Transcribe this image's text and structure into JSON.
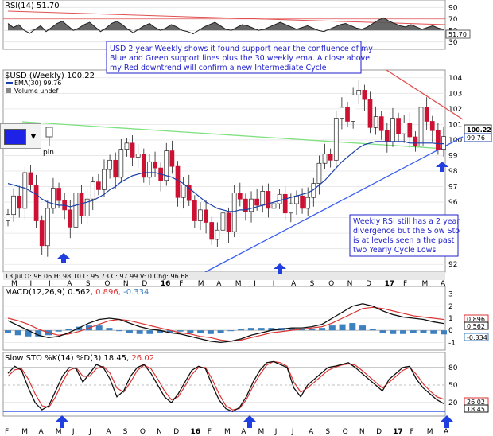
{
  "rsi_panel": {
    "title": "RSI(14) 51.70",
    "levels": [
      90,
      70,
      50,
      30
    ],
    "last_value_label": "51.70",
    "last_value": 51.7
  },
  "price_panel": {
    "title": "$USD (Weekly) 100.22",
    "legend_ema": "EMA(30) 99.76",
    "legend_volume": "Volume undef",
    "y_ticks": [
      92,
      93,
      94,
      95,
      96,
      97,
      98,
      99,
      100,
      101,
      102,
      103,
      104
    ],
    "last_price_label": "100.22",
    "last_price": 100.22,
    "ema_label": "99.76",
    "ema_value": 99.76,
    "ohlc_bar": "13 Jul  O: 96.06  H: 98.10  L: 95.73  C: 97.99  V: 0  Chg: 96.68",
    "x_labels": [
      "M",
      "J",
      "J",
      "A",
      "S",
      "O",
      "N",
      "D",
      "16",
      "F",
      "M",
      "A",
      "M",
      "J",
      "J",
      "A",
      "S",
      "O",
      "N",
      "D",
      "17",
      "F",
      "M",
      "A"
    ],
    "note1": [
      "USD 2 year Weekly shows it found support near the confluence of my",
      "Blue and Green support lines plus the 30 weekly ema. A close above",
      "my Red downtrend will confirm a new Intermediate Cycle"
    ],
    "note2": [
      "Weekly RSI still has a 2 year",
      "divergence but the Slow Sto",
      "is at levels seen a the past",
      "two Yearly Cycle Lows"
    ]
  },
  "macd_panel": {
    "title_prefix": "MACD(12,26,9) 0.562,",
    "title_signal": "0.896,",
    "title_hist": "-0.334",
    "y_ticks": [
      3,
      2,
      1,
      0,
      -1
    ],
    "labels": [
      "0.896",
      "0.562",
      "-0.334"
    ]
  },
  "sto_panel": {
    "title_prefix": "Slow STO %K(14) %D(3) 18.45,",
    "title_d": "26.02",
    "y_ticks": [
      80,
      50,
      20
    ],
    "labels": [
      "26.02",
      "18.45"
    ],
    "x_labels": [
      "F",
      "M",
      "A",
      "M",
      "J",
      "J",
      "A",
      "S",
      "O",
      "N",
      "D",
      "16",
      "F",
      "M",
      "A",
      "M",
      "J",
      "J",
      "A",
      "S",
      "O",
      "N",
      "D",
      "17",
      "F",
      "M",
      "A"
    ]
  },
  "toolbar": {
    "swatch_color": "#1e22e6",
    "dropdown_glyph": "▼",
    "pin_label": "pin"
  },
  "colors": {
    "up_candle": "#ffffff",
    "down_candle": "#cc1133",
    "ema": "#1a3fa8",
    "green_line": "#7fe07f",
    "red_line": "#e05050",
    "blue_line": "#3a5ff0",
    "macd": "#111111",
    "signal": "#dd3333",
    "histogram": "#3d80c0",
    "arrow": "#1f3fe0"
  },
  "chart_data": [
    {
      "type": "line",
      "title": "RSI(14) 51.70",
      "series": [
        {
          "name": "RSI(14)",
          "values": [
            62,
            55,
            60,
            50,
            45,
            52,
            58,
            48,
            55,
            62,
            66,
            58,
            50,
            54,
            60,
            64,
            56,
            48,
            54,
            62,
            66,
            60,
            52,
            46,
            52,
            58,
            62,
            55,
            50,
            54,
            60,
            56,
            50,
            48,
            44,
            50,
            56,
            60,
            64,
            58,
            52,
            50,
            55,
            60,
            58,
            54,
            50,
            52,
            56,
            60,
            64,
            60,
            56,
            52,
            55,
            58,
            54,
            50,
            48,
            52,
            56,
            60,
            62,
            58,
            54,
            52,
            56,
            62,
            68,
            72,
            66,
            62,
            58,
            56,
            60,
            56,
            52,
            55,
            58,
            54,
            51.7
          ]
        }
      ],
      "ylim": [
        20,
        100
      ]
    },
    {
      "type": "candlestick",
      "title": "$USD (Weekly) 100.22",
      "ylim": [
        91.5,
        104.5
      ],
      "series": [
        {
          "name": "$USD (Weekly)",
          "close": [
            95.2,
            96.4,
            95.6,
            97.9,
            97.1,
            94.8,
            93.2,
            95.6,
            96.9,
            96.1,
            95.5,
            94.4,
            96.6,
            95.1,
            96.2,
            97.3,
            96.8,
            98.1,
            98.7,
            97.6,
            99.4,
            99.8,
            98.9,
            99.1,
            97.6,
            98.6,
            98.2,
            97.4,
            99.3,
            98.3,
            96.3,
            97.1,
            96.1,
            94.8,
            95.5,
            94.7,
            93.6,
            94.2,
            95.3,
            94.1,
            96.6,
            96.2,
            95.4,
            96.2,
            95.8,
            96.7,
            95.6,
            95.9,
            96.5,
            95.3,
            95.9,
            96.4,
            95.6,
            96.3,
            97.2,
            98.5,
            99.1,
            98.7,
            101.4,
            102.1,
            101.2,
            102.9,
            103.2,
            102.6,
            100.8,
            101.5,
            100.6,
            99.9,
            101.4,
            100.4,
            101.1,
            100.2,
            99.6,
            102.1,
            101.2,
            100.6,
            99.4,
            100.22
          ],
          "ema30": [
            97.2,
            97.1,
            97.0,
            96.9,
            96.7,
            96.5,
            96.2,
            96.0,
            95.9,
            95.8,
            95.8,
            95.7,
            95.8,
            95.9,
            96.0,
            96.1,
            96.3,
            96.5,
            96.8,
            97.0,
            97.3,
            97.5,
            97.7,
            97.8,
            97.9,
            97.9,
            97.9,
            97.8,
            97.7,
            97.6,
            97.4,
            97.2,
            96.9,
            96.6,
            96.3,
            96.0,
            95.8,
            95.6,
            95.5,
            95.4,
            95.4,
            95.5,
            95.5,
            95.6,
            95.7,
            95.8,
            95.9,
            96.0,
            96.1,
            96.2,
            96.3,
            96.4,
            96.5,
            96.6,
            96.8,
            97.1,
            97.4,
            97.8,
            98.2,
            98.6,
            98.9,
            99.2,
            99.5,
            99.7,
            99.8,
            99.9,
            99.9,
            99.9,
            99.9,
            99.9,
            99.9,
            99.8,
            99.8,
            99.8,
            99.8,
            99.8,
            99.76,
            99.76
          ]
        }
      ]
    },
    {
      "type": "line",
      "title": "MACD(12,26,9) 0.562, 0.896, -0.334",
      "ylim": [
        -1.5,
        3.5
      ],
      "series": [
        {
          "name": "MACD",
          "values": [
            0.8,
            0.4,
            0.0,
            -0.4,
            -0.6,
            -0.5,
            -0.2,
            0.2,
            0.6,
            0.9,
            1.0,
            0.9,
            0.6,
            0.3,
            0.1,
            0.0,
            -0.2,
            -0.3,
            -0.5,
            -0.7,
            -0.9,
            -1.0,
            -0.9,
            -0.7,
            -0.4,
            -0.2,
            0.0,
            0.1,
            0.2,
            0.2,
            0.3,
            0.5,
            1.0,
            1.5,
            2.0,
            2.2,
            2.0,
            1.6,
            1.3,
            1.1,
            1.0,
            0.9,
            0.7,
            0.562
          ]
        },
        {
          "name": "Signal",
          "values": [
            1.0,
            0.8,
            0.5,
            0.1,
            -0.2,
            -0.4,
            -0.3,
            -0.1,
            0.2,
            0.5,
            0.8,
            0.9,
            0.8,
            0.6,
            0.4,
            0.2,
            0.0,
            -0.2,
            -0.3,
            -0.5,
            -0.6,
            -0.8,
            -0.9,
            -0.8,
            -0.6,
            -0.4,
            -0.2,
            -0.1,
            0.0,
            0.1,
            0.2,
            0.3,
            0.6,
            1.0,
            1.4,
            1.8,
            1.9,
            1.8,
            1.6,
            1.4,
            1.2,
            1.1,
            1.0,
            0.896
          ]
        },
        {
          "name": "Histogram",
          "values": [
            -0.2,
            -0.4,
            -0.5,
            -0.5,
            -0.4,
            -0.1,
            0.1,
            0.3,
            0.4,
            0.4,
            0.2,
            0.0,
            -0.2,
            -0.3,
            -0.3,
            -0.2,
            -0.2,
            -0.1,
            -0.2,
            -0.2,
            -0.3,
            -0.2,
            0.0,
            0.1,
            0.2,
            0.2,
            0.2,
            0.2,
            0.2,
            0.1,
            0.1,
            0.2,
            0.4,
            0.5,
            0.6,
            0.4,
            0.1,
            -0.2,
            -0.3,
            -0.3,
            -0.2,
            -0.2,
            -0.3,
            -0.334
          ]
        }
      ]
    },
    {
      "type": "line",
      "title": "Slow STO %K(14) %D(3) 18.45, 26.02",
      "ylim": [
        0,
        100
      ],
      "series": [
        {
          "name": "%K",
          "values": [
            70,
            82,
            75,
            45,
            20,
            8,
            15,
            40,
            65,
            80,
            78,
            55,
            70,
            85,
            80,
            60,
            30,
            40,
            65,
            80,
            85,
            70,
            50,
            30,
            20,
            35,
            55,
            75,
            82,
            78,
            50,
            25,
            10,
            5,
            12,
            30,
            55,
            75,
            88,
            90,
            85,
            80,
            45,
            30,
            50,
            60,
            70,
            80,
            82,
            85,
            88,
            80,
            70,
            60,
            50,
            40,
            60,
            70,
            80,
            82,
            60,
            45,
            35,
            25,
            18.45
          ]
        },
        {
          "name": "%D",
          "values": [
            65,
            76,
            78,
            60,
            35,
            15,
            12,
            30,
            55,
            75,
            80,
            65,
            65,
            78,
            82,
            70,
            45,
            38,
            55,
            75,
            84,
            78,
            60,
            40,
            25,
            30,
            48,
            68,
            80,
            80,
            60,
            35,
            15,
            8,
            10,
            25,
            48,
            68,
            84,
            90,
            88,
            82,
            55,
            38,
            45,
            55,
            65,
            75,
            80,
            84,
            86,
            84,
            75,
            65,
            55,
            45,
            55,
            65,
            75,
            80,
            68,
            52,
            40,
            30,
            26.02
          ]
        }
      ],
      "reference_lines": [
        80,
        50,
        20
      ]
    }
  ]
}
